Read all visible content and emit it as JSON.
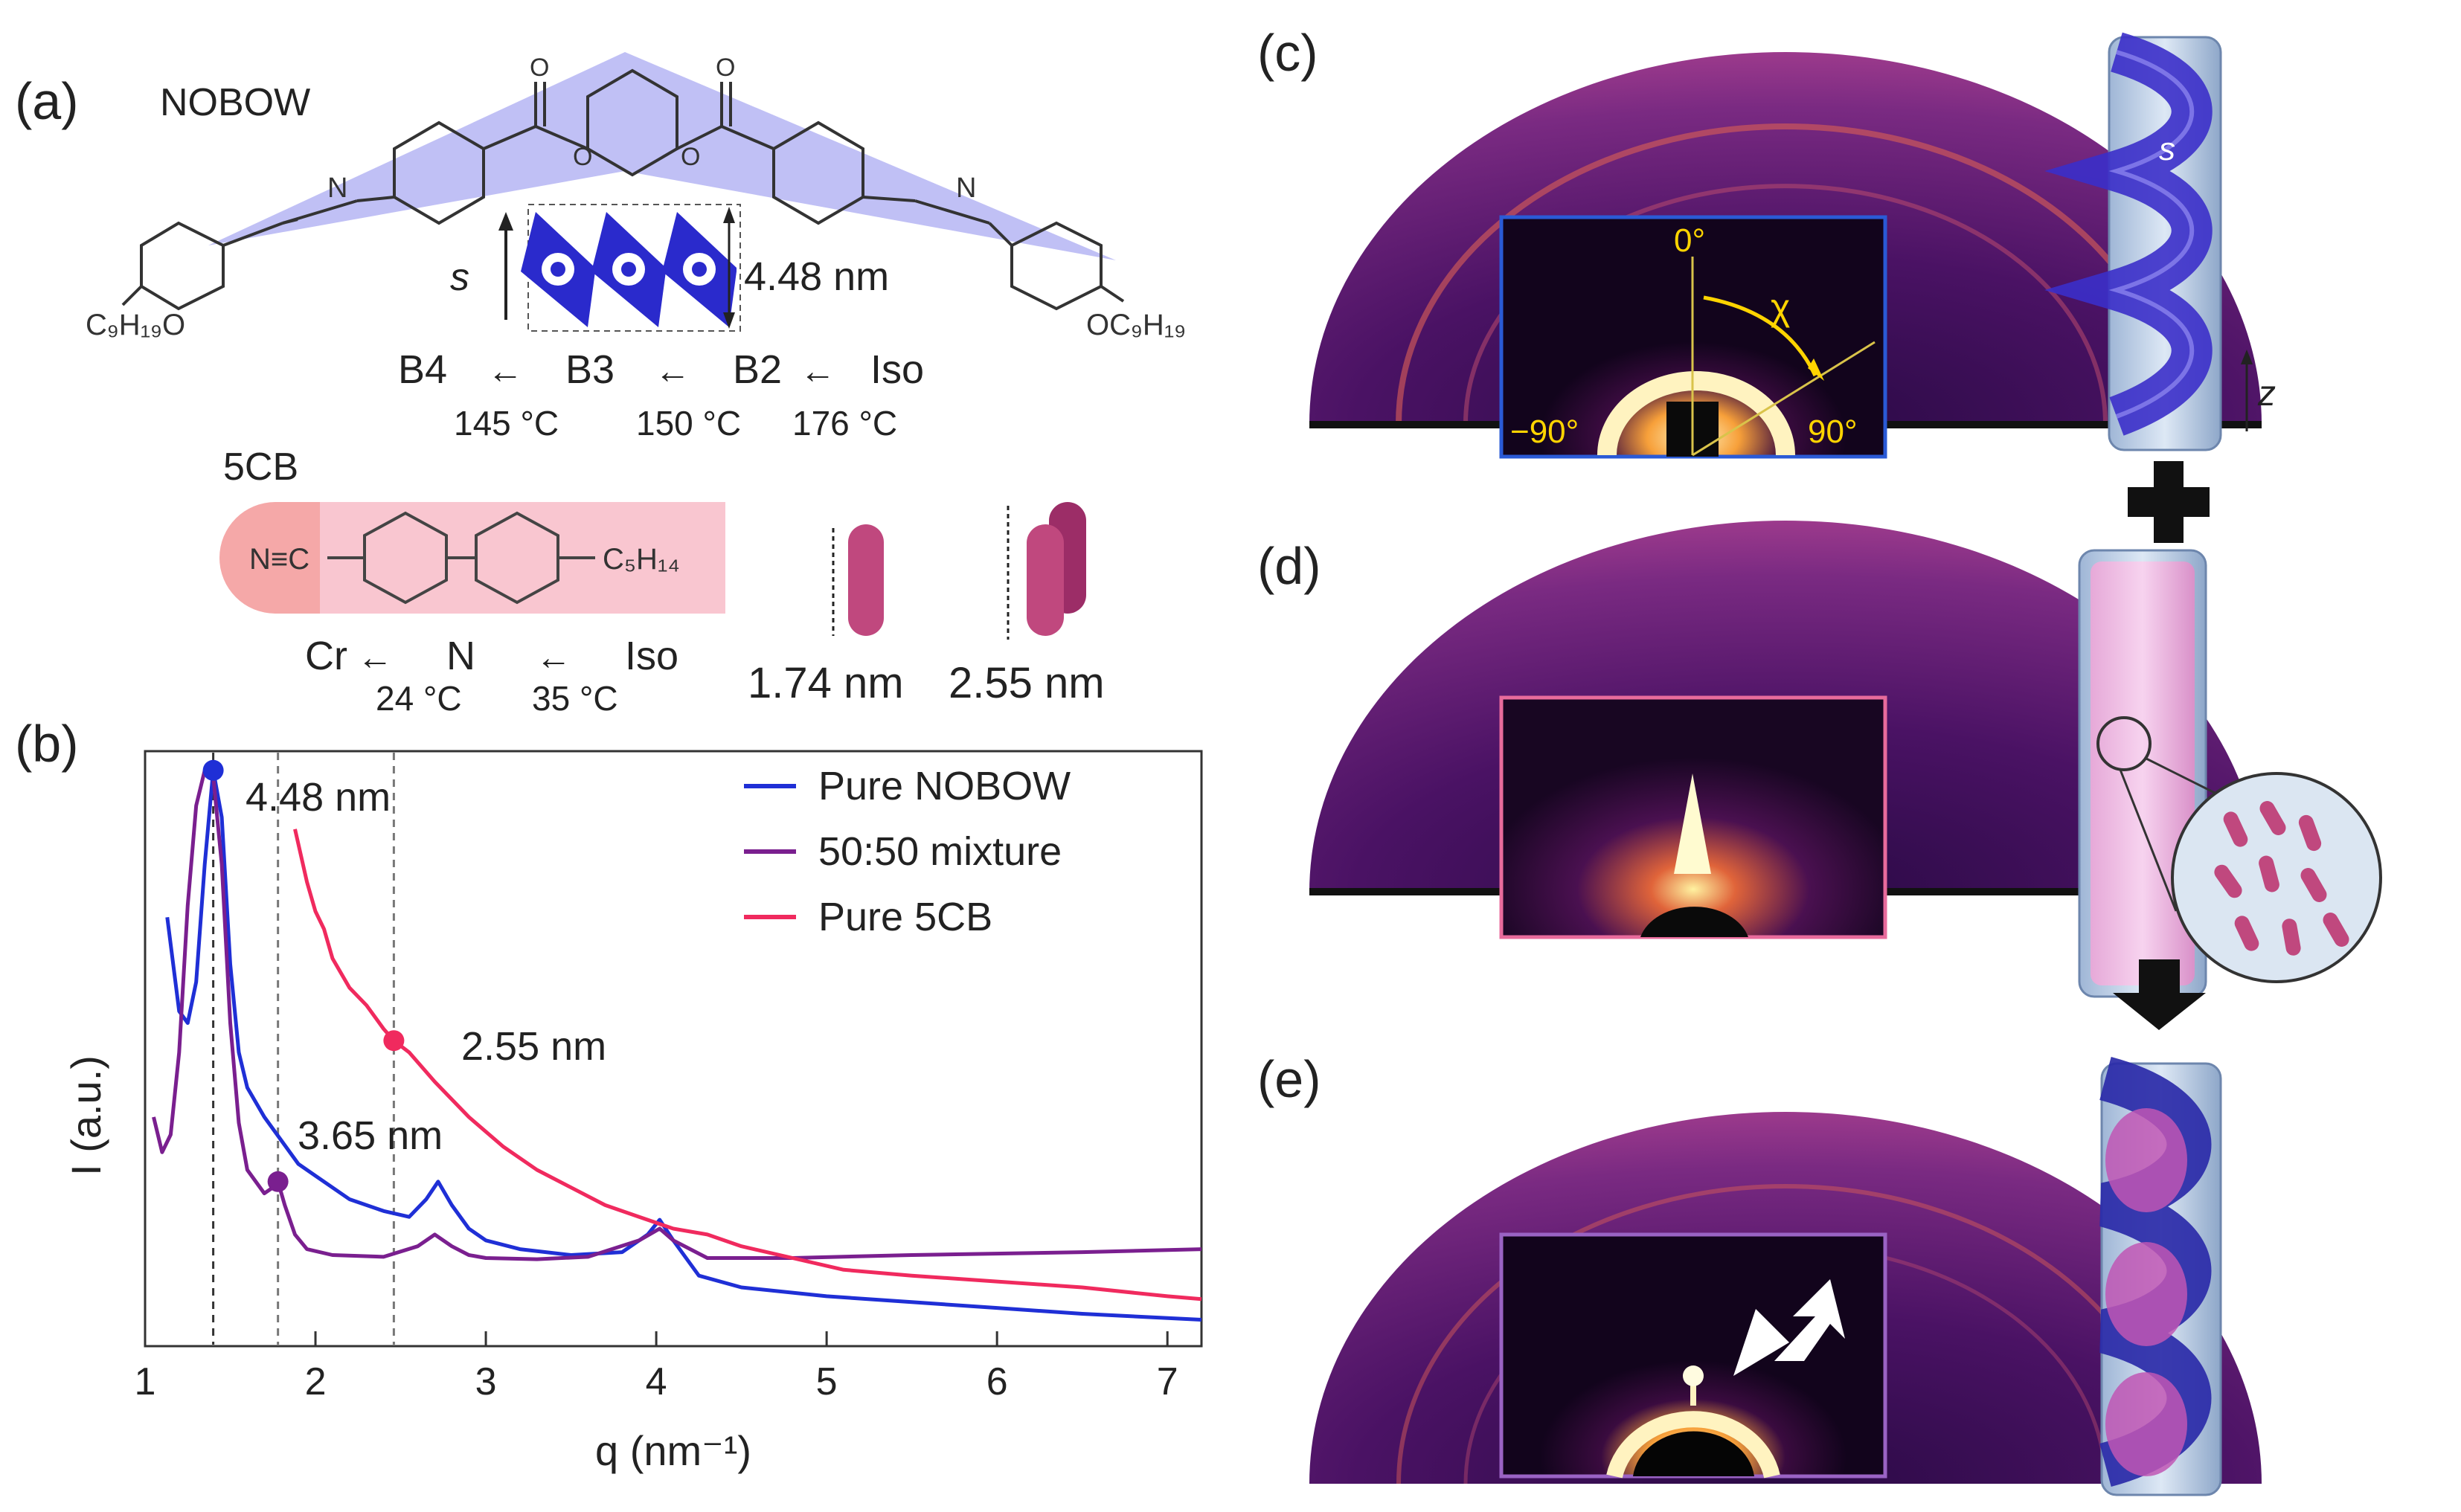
{
  "panels": {
    "a": {
      "label": "(a)",
      "nobow": {
        "name": "NOBOW",
        "left_tail": "C₉H₁₉O",
        "right_tail": "OC₉H₁₉",
        "n_left": "N",
        "n_right": "N",
        "carbonyl_o": "O",
        "ester_o": "O",
        "s_label": "s",
        "layer_spacing": "4.48 nm",
        "phases": [
          "B4",
          "B3",
          "B2",
          "Iso"
        ],
        "temps": [
          "145 °C",
          "150 °C",
          "176 °C"
        ]
      },
      "fivecb": {
        "name": "5CB",
        "head": "N≡C",
        "tail": "C₅H₁₄",
        "phases": [
          "Cr",
          "N",
          "Iso"
        ],
        "temps": [
          "24 °C",
          "35 °C"
        ],
        "single_length": "1.74 nm",
        "dimer_length": "2.55 nm"
      }
    },
    "b": {
      "label": "(b)",
      "annotations": [
        "4.48 nm",
        "2.55 nm",
        "3.65 nm"
      ]
    },
    "c": {
      "label": "(c)",
      "inset_angles": [
        "0°",
        "−90°",
        "90°"
      ],
      "chi": "χ",
      "s_label": "s",
      "z_label": "z"
    },
    "d": {
      "label": "(d)"
    },
    "e": {
      "label": "(e)"
    }
  },
  "colors": {
    "nobow": "#1f2fd6",
    "mixture": "#7a1f8f",
    "fivecb": "#f02a5e",
    "nobow_shade": "#b8b8f4",
    "fivecb_shade": "#f8c3cc",
    "saxs_dark": "#3a0f52",
    "saxs_mid": "#8a2f86",
    "saxs_ring": "#d35a58"
  },
  "chart_data": {
    "type": "line",
    "xlabel": "q (nm⁻¹)",
    "ylabel": "I (a.u.)",
    "xlim": [
      1,
      7.2
    ],
    "ylim": [
      0,
      1
    ],
    "xticks": [
      1,
      2,
      3,
      4,
      5,
      6,
      7
    ],
    "legend_position": "top-right",
    "reference_lines": [
      1.4,
      1.78,
      2.46
    ],
    "series": [
      {
        "name": "Pure NOBOW",
        "x": [
          1.13,
          1.2,
          1.25,
          1.3,
          1.35,
          1.4,
          1.45,
          1.5,
          1.55,
          1.6,
          1.7,
          1.8,
          1.9,
          2.0,
          2.2,
          2.4,
          2.55,
          2.65,
          2.72,
          2.8,
          2.9,
          3.0,
          3.2,
          3.5,
          3.8,
          3.95,
          4.02,
          4.1,
          4.25,
          4.5,
          5.0,
          5.5,
          6.0,
          6.5,
          7.2
        ],
        "y": [
          0.73,
          0.57,
          0.55,
          0.62,
          0.82,
          0.98,
          0.9,
          0.65,
          0.5,
          0.44,
          0.39,
          0.35,
          0.31,
          0.29,
          0.25,
          0.23,
          0.22,
          0.25,
          0.28,
          0.24,
          0.2,
          0.18,
          0.165,
          0.155,
          0.16,
          0.19,
          0.215,
          0.18,
          0.12,
          0.1,
          0.085,
          0.075,
          0.065,
          0.055,
          0.045
        ]
      },
      {
        "name": "50:50 mixture",
        "x": [
          1.05,
          1.1,
          1.15,
          1.2,
          1.25,
          1.3,
          1.35,
          1.4,
          1.45,
          1.5,
          1.55,
          1.6,
          1.7,
          1.75,
          1.78,
          1.82,
          1.88,
          1.95,
          2.1,
          2.4,
          2.6,
          2.7,
          2.8,
          2.9,
          3.0,
          3.3,
          3.6,
          3.9,
          4.02,
          4.1,
          4.3,
          4.8,
          5.5,
          6.5,
          7.2
        ],
        "y": [
          0.39,
          0.33,
          0.36,
          0.5,
          0.75,
          0.92,
          0.98,
          0.97,
          0.82,
          0.55,
          0.38,
          0.3,
          0.26,
          0.27,
          0.28,
          0.24,
          0.19,
          0.165,
          0.155,
          0.152,
          0.17,
          0.19,
          0.17,
          0.155,
          0.15,
          0.148,
          0.152,
          0.18,
          0.2,
          0.18,
          0.15,
          0.15,
          0.155,
          0.16,
          0.165
        ]
      },
      {
        "name": "Pure 5CB",
        "x": [
          1.88,
          1.95,
          2.0,
          2.05,
          2.1,
          2.2,
          2.3,
          2.4,
          2.46,
          2.55,
          2.7,
          2.9,
          3.1,
          3.3,
          3.5,
          3.7,
          3.9,
          4.1,
          4.3,
          4.5,
          4.8,
          5.1,
          5.5,
          6.0,
          6.5,
          7.0,
          7.2
        ],
        "y": [
          0.88,
          0.79,
          0.74,
          0.71,
          0.66,
          0.61,
          0.58,
          0.54,
          0.52,
          0.5,
          0.45,
          0.39,
          0.34,
          0.3,
          0.27,
          0.24,
          0.22,
          0.2,
          0.19,
          0.17,
          0.15,
          0.13,
          0.12,
          0.11,
          0.1,
          0.085,
          0.08
        ]
      }
    ]
  }
}
